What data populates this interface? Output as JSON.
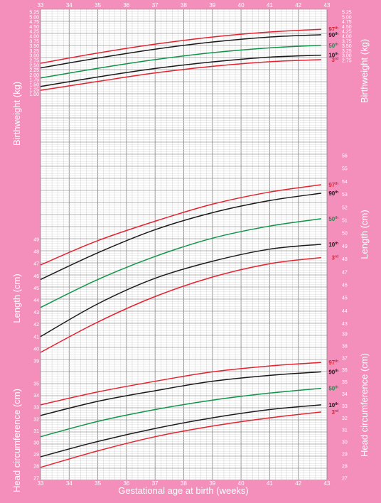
{
  "chart_data": {
    "type": "line",
    "xlabel": "Gestational age at birth (weeks)",
    "x_ticks": [
      33,
      34,
      35,
      36,
      37,
      38,
      39,
      40,
      41,
      42,
      43
    ],
    "xlim": [
      33,
      43
    ],
    "centile_labels": [
      {
        "main": "97",
        "sup": "th",
        "color": "#e3232f"
      },
      {
        "main": "90",
        "sup": "th",
        "color": "#1a1a1a"
      },
      {
        "main": "50",
        "sup": "th",
        "color": "#109447"
      },
      {
        "main": "10",
        "sup": "th",
        "color": "#1a1a1a"
      },
      {
        "main": "3",
        "sup": "rd",
        "color": "#e3232f"
      }
    ],
    "panels": [
      {
        "id": "birthweight",
        "ylabel": "Birthweight (kg)",
        "left_ticks": [
          "5.25",
          "5.00",
          "4.75",
          "4.50",
          "4.25",
          "4.00",
          "3.75",
          "3.50",
          "3.25",
          "3.00",
          "2.75",
          "2.50",
          "2.25",
          "2.00",
          "1.75",
          "1.50",
          "1.25",
          "1.00"
        ],
        "right_ticks": [
          "5.25",
          "5.00",
          "4.75",
          "4.50",
          "4.25",
          "4.00",
          "3.75",
          "3.50",
          "3.25",
          "3.00",
          "2.75"
        ],
        "series": [
          {
            "centile": "97",
            "x": [
              33,
              35,
              37,
              39,
              41,
              42.8
            ],
            "y": [
              2.6,
              3.13,
              3.59,
              3.96,
              4.22,
              4.36
            ]
          },
          {
            "centile": "90",
            "x": [
              33,
              35,
              37,
              39,
              41,
              42.8
            ],
            "y": [
              2.36,
              2.87,
              3.33,
              3.7,
              3.96,
              4.08
            ]
          },
          {
            "centile": "50",
            "x": [
              33,
              35,
              37,
              39,
              41,
              42.8
            ],
            "y": [
              1.84,
              2.34,
              2.79,
              3.15,
              3.4,
              3.53
            ]
          },
          {
            "centile": "10",
            "x": [
              33,
              35,
              37,
              39,
              41,
              42.8
            ],
            "y": [
              1.4,
              1.89,
              2.33,
              2.67,
              2.92,
              3.02
            ]
          },
          {
            "centile": "3",
            "x": [
              33,
              35,
              37,
              39,
              41,
              42.8
            ],
            "y": [
              1.2,
              1.66,
              2.1,
              2.44,
              2.68,
              2.79
            ]
          }
        ]
      },
      {
        "id": "length",
        "ylabel": "Length (cm)",
        "left_ticks": [
          "49",
          "48",
          "47",
          "46",
          "45",
          "44",
          "43",
          "42",
          "41",
          "40",
          "39"
        ],
        "right_ticks": [
          "56",
          "55",
          "54",
          "53",
          "52",
          "51",
          "50",
          "49",
          "48",
          "47",
          "46",
          "45",
          "44",
          "43"
        ],
        "series": [
          {
            "centile": "97",
            "x": [
              33,
              35,
              37,
              39,
              41,
              42.8
            ],
            "y": [
              46.9,
              48.9,
              50.5,
              51.9,
              52.9,
              53.5
            ]
          },
          {
            "centile": "90",
            "x": [
              33,
              35,
              37,
              39,
              41,
              42.8
            ],
            "y": [
              45.7,
              47.9,
              49.8,
              51.2,
              52.2,
              52.8
            ]
          },
          {
            "centile": "50",
            "x": [
              33,
              35,
              37,
              39,
              41,
              42.8
            ],
            "y": [
              43.4,
              45.7,
              47.6,
              49.1,
              50.1,
              50.7
            ]
          },
          {
            "centile": "10",
            "x": [
              33,
              35,
              37,
              39,
              41,
              42.8
            ],
            "y": [
              41.0,
              43.7,
              45.8,
              47.2,
              48.2,
              48.6
            ]
          },
          {
            "centile": "3",
            "x": [
              33,
              35,
              37,
              39,
              41,
              42.8
            ],
            "y": [
              39.7,
              42.2,
              44.3,
              45.9,
              47.0,
              47.5
            ]
          }
        ]
      },
      {
        "id": "head-circumference",
        "ylabel": "Head circumference (cm)",
        "left_ticks": [
          "35",
          "34",
          "33",
          "32",
          "31",
          "30",
          "29",
          "28",
          "27"
        ],
        "right_ticks": [
          "39",
          "38",
          "37",
          "36",
          "35",
          "34",
          "33",
          "32",
          "31",
          "30",
          "29",
          "28",
          "27"
        ],
        "series": [
          {
            "centile": "97",
            "x": [
              33,
              35,
              37,
              39,
              41,
              42.8
            ],
            "y": [
              33.2,
              34.3,
              35.2,
              36.0,
              36.5,
              36.8
            ]
          },
          {
            "centile": "90",
            "x": [
              33,
              35,
              37,
              39,
              41,
              42.8
            ],
            "y": [
              32.3,
              33.5,
              34.4,
              35.2,
              35.7,
              36.0
            ]
          },
          {
            "centile": "50",
            "x": [
              33,
              35,
              37,
              39,
              41,
              42.8
            ],
            "y": [
              30.5,
              31.8,
              32.8,
              33.6,
              34.2,
              34.6
            ]
          },
          {
            "centile": "10",
            "x": [
              33,
              35,
              37,
              39,
              41,
              42.8
            ],
            "y": [
              28.8,
              30.1,
              31.2,
              32.1,
              32.8,
              33.2
            ]
          },
          {
            "centile": "3",
            "x": [
              33,
              35,
              37,
              39,
              41,
              42.8
            ],
            "y": [
              27.9,
              29.3,
              30.5,
              31.4,
              32.1,
              32.6
            ]
          }
        ]
      }
    ]
  }
}
